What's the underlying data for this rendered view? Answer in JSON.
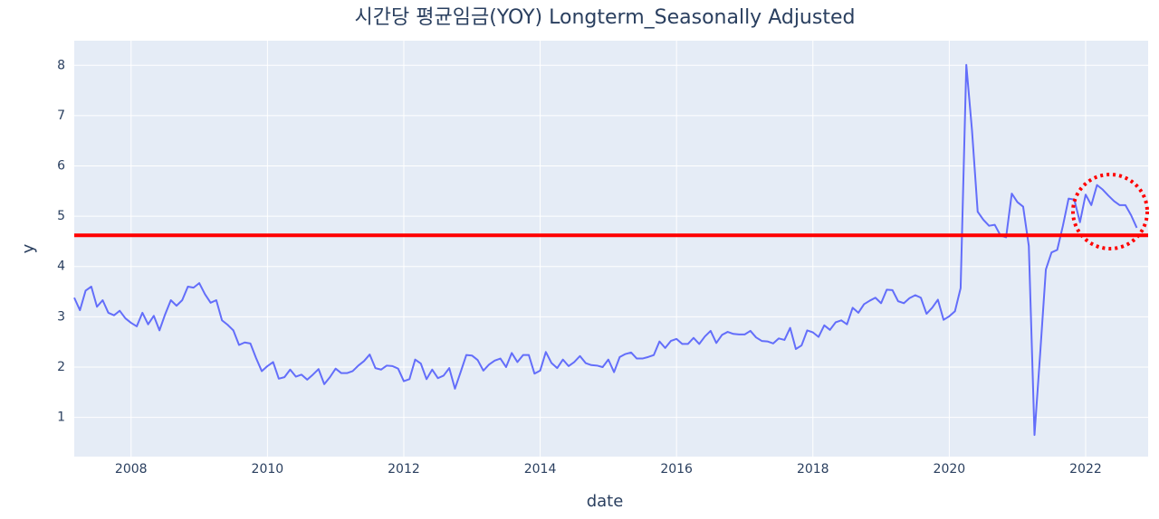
{
  "chart_data": {
    "type": "line",
    "title": "시간당 평균임금(YOY) Longterm_Seasonally Adjusted",
    "x_label": "date",
    "y_label": "y",
    "x": [
      "2007-03",
      "2007-04",
      "2007-05",
      "2007-06",
      "2007-07",
      "2007-08",
      "2007-09",
      "2007-10",
      "2007-11",
      "2007-12",
      "2008-01",
      "2008-02",
      "2008-03",
      "2008-04",
      "2008-05",
      "2008-06",
      "2008-07",
      "2008-08",
      "2008-09",
      "2008-10",
      "2008-11",
      "2008-12",
      "2009-01",
      "2009-02",
      "2009-03",
      "2009-04",
      "2009-05",
      "2009-06",
      "2009-07",
      "2009-08",
      "2009-09",
      "2009-10",
      "2009-11",
      "2009-12",
      "2010-01",
      "2010-02",
      "2010-03",
      "2010-04",
      "2010-05",
      "2010-06",
      "2010-07",
      "2010-08",
      "2010-09",
      "2010-10",
      "2010-11",
      "2010-12",
      "2011-01",
      "2011-02",
      "2011-03",
      "2011-04",
      "2011-05",
      "2011-06",
      "2011-07",
      "2011-08",
      "2011-09",
      "2011-10",
      "2011-11",
      "2011-12",
      "2012-01",
      "2012-02",
      "2012-03",
      "2012-04",
      "2012-05",
      "2012-06",
      "2012-07",
      "2012-08",
      "2012-09",
      "2012-10",
      "2012-11",
      "2012-12",
      "2013-01",
      "2013-02",
      "2013-03",
      "2013-04",
      "2013-05",
      "2013-06",
      "2013-07",
      "2013-08",
      "2013-09",
      "2013-10",
      "2013-11",
      "2013-12",
      "2014-01",
      "2014-02",
      "2014-03",
      "2014-04",
      "2014-05",
      "2014-06",
      "2014-07",
      "2014-08",
      "2014-09",
      "2014-10",
      "2014-11",
      "2014-12",
      "2015-01",
      "2015-02",
      "2015-03",
      "2015-04",
      "2015-05",
      "2015-06",
      "2015-07",
      "2015-08",
      "2015-09",
      "2015-10",
      "2015-11",
      "2015-12",
      "2016-01",
      "2016-02",
      "2016-03",
      "2016-04",
      "2016-05",
      "2016-06",
      "2016-07",
      "2016-08",
      "2016-09",
      "2016-10",
      "2016-11",
      "2016-12",
      "2017-01",
      "2017-02",
      "2017-03",
      "2017-04",
      "2017-05",
      "2017-06",
      "2017-07",
      "2017-08",
      "2017-09",
      "2017-10",
      "2017-11",
      "2017-12",
      "2018-01",
      "2018-02",
      "2018-03",
      "2018-04",
      "2018-05",
      "2018-06",
      "2018-07",
      "2018-08",
      "2018-09",
      "2018-10",
      "2018-11",
      "2018-12",
      "2019-01",
      "2019-02",
      "2019-03",
      "2019-04",
      "2019-05",
      "2019-06",
      "2019-07",
      "2019-08",
      "2019-09",
      "2019-10",
      "2019-11",
      "2019-12",
      "2020-01",
      "2020-02",
      "2020-03",
      "2020-04",
      "2020-05",
      "2020-06",
      "2020-07",
      "2020-08",
      "2020-09",
      "2020-10",
      "2020-11",
      "2020-12",
      "2021-01",
      "2021-02",
      "2021-03",
      "2021-04",
      "2021-05",
      "2021-06",
      "2021-07",
      "2021-08",
      "2021-09",
      "2021-10",
      "2021-11",
      "2021-12",
      "2022-01",
      "2022-02",
      "2022-03",
      "2022-04",
      "2022-05",
      "2022-06",
      "2022-07",
      "2022-08",
      "2022-09",
      "2022-10"
    ],
    "series": [
      {
        "color": "#636efa",
        "values": [
          3.38,
          3.13,
          3.52,
          3.6,
          3.2,
          3.33,
          3.08,
          3.03,
          3.12,
          2.97,
          2.88,
          2.81,
          3.08,
          2.85,
          3.02,
          2.73,
          3.05,
          3.33,
          3.22,
          3.33,
          3.6,
          3.58,
          3.67,
          3.45,
          3.28,
          3.33,
          2.93,
          2.84,
          2.73,
          2.44,
          2.49,
          2.47,
          2.18,
          1.92,
          2.02,
          2.1,
          1.77,
          1.8,
          1.95,
          1.81,
          1.85,
          1.75,
          1.85,
          1.96,
          1.66,
          1.8,
          1.97,
          1.88,
          1.88,
          1.92,
          2.03,
          2.12,
          2.25,
          1.98,
          1.95,
          2.03,
          2.02,
          1.97,
          1.72,
          1.76,
          2.15,
          2.07,
          1.76,
          1.95,
          1.78,
          1.83,
          1.98,
          1.57,
          1.9,
          2.24,
          2.23,
          2.14,
          1.93,
          2.05,
          2.13,
          2.17,
          2.0,
          2.28,
          2.1,
          2.24,
          2.24,
          1.87,
          1.93,
          2.3,
          2.08,
          1.98,
          2.15,
          2.02,
          2.1,
          2.22,
          2.08,
          2.04,
          2.03,
          2.0,
          2.15,
          1.9,
          2.2,
          2.26,
          2.29,
          2.17,
          2.17,
          2.2,
          2.24,
          2.51,
          2.38,
          2.52,
          2.56,
          2.46,
          2.46,
          2.58,
          2.46,
          2.61,
          2.72,
          2.48,
          2.64,
          2.7,
          2.66,
          2.65,
          2.65,
          2.72,
          2.59,
          2.52,
          2.51,
          2.47,
          2.57,
          2.54,
          2.78,
          2.36,
          2.43,
          2.73,
          2.69,
          2.6,
          2.83,
          2.74,
          2.89,
          2.93,
          2.85,
          3.18,
          3.08,
          3.25,
          3.32,
          3.38,
          3.27,
          3.54,
          3.53,
          3.31,
          3.27,
          3.37,
          3.43,
          3.38,
          3.06,
          3.18,
          3.34,
          2.94,
          3.01,
          3.11,
          3.57,
          8.01,
          6.71,
          5.09,
          4.93,
          4.81,
          4.83,
          4.62,
          4.58,
          5.45,
          5.28,
          5.19,
          4.41,
          0.65,
          2.27,
          3.94,
          4.28,
          4.33,
          4.81,
          5.35,
          5.33,
          4.88,
          5.43,
          5.22,
          5.62,
          5.53,
          5.41,
          5.3,
          5.22,
          5.22,
          5.02,
          4.77
        ]
      }
    ],
    "hline": {
      "value": 4.62,
      "color": "#ff0000"
    },
    "xlim": [
      "2007-03",
      "2022-12"
    ],
    "xticks": [
      "2008",
      "2010",
      "2012",
      "2014",
      "2016",
      "2018",
      "2020",
      "2022"
    ],
    "ylim": [
      0.22,
      8.49
    ],
    "yticks": [
      1,
      2,
      3,
      4,
      5,
      6,
      7,
      8
    ],
    "grid": true
  }
}
